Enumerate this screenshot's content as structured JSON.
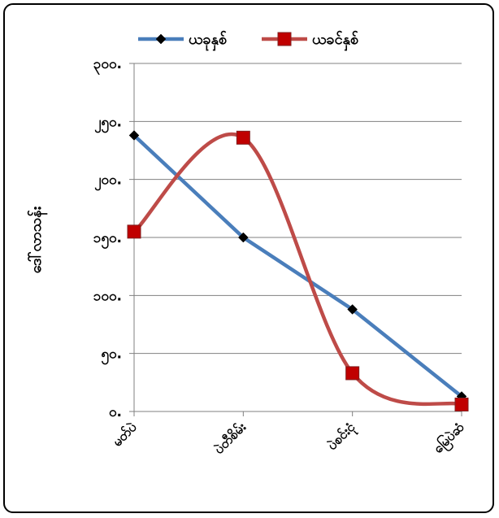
{
  "chart_data": {
    "type": "line",
    "categories": [
      "မတ်ပဲ",
      "ပဲတီစိမ်း",
      "ပဲစင်းငုံ",
      "မြေပဲဆံ"
    ],
    "series": [
      {
        "name": "ယခုနှစ်",
        "values": [
          238,
          150,
          88,
          13
        ],
        "color": "#4A7EBB",
        "marker": "diamond"
      },
      {
        "name": "ယခင်နှစ်",
        "values": [
          155,
          236,
          33,
          6
        ],
        "color": "#BE4B48",
        "marker": "square"
      }
    ],
    "yticks": [
      "၀.",
      "၅၀.",
      "၁၀၀.",
      "၁၅၀.",
      "၂၀၀.",
      "၂၅၀.",
      "၃၀၀."
    ],
    "ylim": [
      0,
      300
    ],
    "ylabel": "ဒေါ်လာသန်း",
    "xlabel": "",
    "grid": true,
    "legend": "top"
  }
}
